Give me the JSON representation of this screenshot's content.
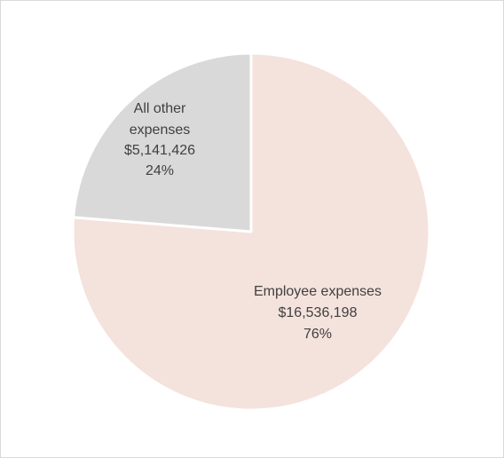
{
  "chart_data": {
    "type": "pie",
    "title": "",
    "slices": [
      {
        "name": "Employee expenses",
        "value_label": "$16,536,198",
        "percent_label": "76%",
        "value": 16536198,
        "percent": 76,
        "color": "#f4e2dc"
      },
      {
        "name": "All other expenses",
        "name_lines": [
          "All other",
          "expenses"
        ],
        "value_label": "$5,141,426",
        "percent_label": "24%",
        "value": 5141426,
        "percent": 24,
        "color": "#d9d9d9"
      }
    ],
    "start_angle_deg": 0,
    "direction": "clockwise",
    "legend": "none",
    "data_labels": "inside"
  },
  "colors": {
    "slice_border": "#ffffff",
    "frame_border": "#d9d9d9",
    "label_text": "#404040"
  }
}
